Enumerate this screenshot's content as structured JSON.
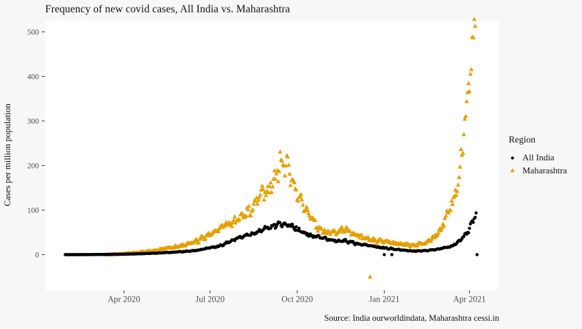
{
  "colors": {
    "figure_background": "#F7F7F7",
    "panel_background": "#FFFFFF",
    "tick_mark": "#333333",
    "tick_label": "#4D4D4D",
    "text": "#111111",
    "all_india": "#000000",
    "maharashtra": "#E69F00"
  },
  "chart_data": {
    "type": "scatter",
    "title": "Frequency of new covid cases, All India vs. Maharashtra",
    "xlabel": "",
    "ylabel": "Cases per million population",
    "caption": "Source: India ourworldindata, Maharashtra cessi.in",
    "grid": false,
    "legend_position": "right",
    "legend": {
      "title": "Region"
    },
    "y_ticks": [
      0,
      100,
      200,
      300,
      400,
      500
    ],
    "ylim": [
      -79,
      525
    ],
    "x_ticks": [
      {
        "date": "2020-04-01",
        "label": "Apr 2020"
      },
      {
        "date": "2020-07-01",
        "label": "Jul 2020"
      },
      {
        "date": "2020-10-01",
        "label": "Oct 2020"
      },
      {
        "date": "2021-01-01",
        "label": "Jan 2021"
      },
      {
        "date": "2021-04-01",
        "label": "Apr 2021"
      }
    ],
    "note": "Daily scatter points; values estimated from chart. 'keypoints' are [date, cases-per-million] anchors of the daily trend; daily points lie on/near the interpolated trend. 'outliers' are individually visible stray points.",
    "series": [
      {
        "name": "All India",
        "marker": "circle",
        "color": "#000000",
        "keypoints": [
          [
            "2020-01-30",
            0
          ],
          [
            "2020-02-15",
            0
          ],
          [
            "2020-03-01",
            0.2
          ],
          [
            "2020-03-15",
            0.5
          ],
          [
            "2020-04-01",
            1
          ],
          [
            "2020-04-15",
            1.8
          ],
          [
            "2020-05-01",
            3
          ],
          [
            "2020-05-15",
            4.5
          ],
          [
            "2020-06-01",
            6.5
          ],
          [
            "2020-06-15",
            9
          ],
          [
            "2020-07-01",
            15
          ],
          [
            "2020-07-15",
            22
          ],
          [
            "2020-08-01",
            38
          ],
          [
            "2020-08-15",
            47
          ],
          [
            "2020-09-01",
            60
          ],
          [
            "2020-09-10",
            66
          ],
          [
            "2020-09-16",
            70
          ],
          [
            "2020-09-24",
            64
          ],
          [
            "2020-10-01",
            58
          ],
          [
            "2020-10-10",
            47
          ],
          [
            "2020-10-25",
            38
          ],
          [
            "2020-11-10",
            31
          ],
          [
            "2020-11-25",
            29
          ],
          [
            "2020-12-10",
            22
          ],
          [
            "2020-12-25",
            17
          ],
          [
            "2021-01-05",
            14
          ],
          [
            "2021-01-20",
            10
          ],
          [
            "2021-02-01",
            8
          ],
          [
            "2021-02-15",
            9
          ],
          [
            "2021-03-01",
            13
          ],
          [
            "2021-03-10",
            17
          ],
          [
            "2021-03-19",
            26
          ],
          [
            "2021-03-27",
            42
          ],
          [
            "2021-04-01",
            58
          ],
          [
            "2021-04-04",
            76
          ],
          [
            "2021-04-08",
            94
          ]
        ],
        "outliers": [
          [
            "2021-01-01",
            0
          ],
          [
            "2021-01-09",
            0
          ],
          [
            "2021-04-09",
            0
          ]
        ]
      },
      {
        "name": "Maharashtra",
        "marker": "triangle",
        "color": "#E69F00",
        "keypoints": [
          [
            "2020-03-14",
            0
          ],
          [
            "2020-04-01",
            2
          ],
          [
            "2020-04-15",
            5
          ],
          [
            "2020-05-01",
            8
          ],
          [
            "2020-05-15",
            14
          ],
          [
            "2020-06-01",
            20
          ],
          [
            "2020-06-15",
            30
          ],
          [
            "2020-07-01",
            45
          ],
          [
            "2020-07-15",
            62
          ],
          [
            "2020-08-01",
            82
          ],
          [
            "2020-08-08",
            95
          ],
          [
            "2020-08-15",
            110
          ],
          [
            "2020-08-24",
            135
          ],
          [
            "2020-09-01",
            148
          ],
          [
            "2020-09-08",
            175
          ],
          [
            "2020-09-16",
            215
          ],
          [
            "2020-09-22",
            192
          ],
          [
            "2020-10-01",
            140
          ],
          [
            "2020-10-08",
            110
          ],
          [
            "2020-10-15",
            85
          ],
          [
            "2020-10-23",
            62
          ],
          [
            "2020-11-01",
            50
          ],
          [
            "2020-11-12",
            52
          ],
          [
            "2020-11-20",
            58
          ],
          [
            "2020-12-01",
            45
          ],
          [
            "2020-12-15",
            35
          ],
          [
            "2021-01-01",
            30
          ],
          [
            "2021-01-15",
            25
          ],
          [
            "2021-02-01",
            21
          ],
          [
            "2021-02-12",
            26
          ],
          [
            "2021-02-22",
            38
          ],
          [
            "2021-03-01",
            55
          ],
          [
            "2021-03-06",
            75
          ],
          [
            "2021-03-11",
            110
          ],
          [
            "2021-03-16",
            130
          ],
          [
            "2021-03-21",
            165
          ],
          [
            "2021-03-24",
            240
          ],
          [
            "2021-03-27",
            300
          ],
          [
            "2021-03-30",
            330
          ],
          [
            "2021-04-01",
            385
          ],
          [
            "2021-04-03",
            425
          ],
          [
            "2021-04-05",
            470
          ],
          [
            "2021-04-06",
            503
          ],
          [
            "2021-04-07",
            490
          ]
        ],
        "outliers": [
          [
            "2020-12-17",
            -50
          ]
        ]
      }
    ]
  }
}
